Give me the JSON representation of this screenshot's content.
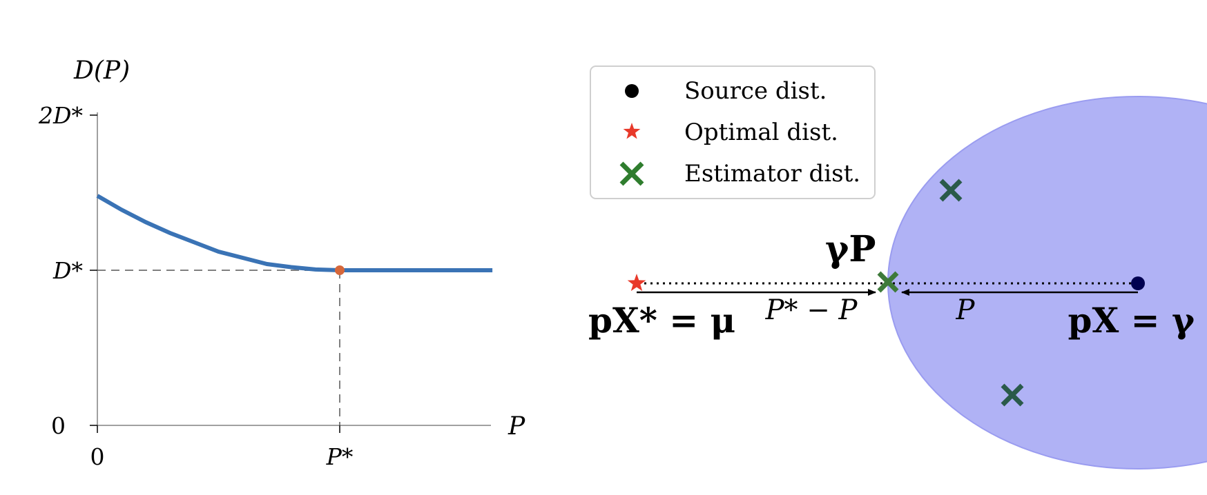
{
  "left_plot": {
    "y_axis_label": "D(P)",
    "x_axis_label": "P",
    "y_ticks": [
      "0",
      "D*",
      "2D*"
    ],
    "x_ticks": [
      "0",
      "P*"
    ],
    "curve_color": "#3a73b5",
    "marker_color": "#d6673a",
    "dash_color": "#7f7f7f"
  },
  "chart_data": {
    "type": "line",
    "title": "",
    "xlabel": "P",
    "ylabel": "D(P)",
    "xlim": [
      0,
      1.63
    ],
    "ylim": [
      0,
      2
    ],
    "x_tick_labels": [
      "0",
      "P*"
    ],
    "y_tick_labels": [
      "0",
      "D*",
      "2D*"
    ],
    "series": [
      {
        "x": [
          0,
          0.1,
          0.2,
          0.3,
          0.4,
          0.5,
          0.6,
          0.7,
          0.8,
          0.9,
          1.0,
          1.2,
          1.4,
          1.63
        ],
        "y": [
          1.48,
          1.39,
          1.31,
          1.24,
          1.18,
          1.12,
          1.08,
          1.04,
          1.02,
          1.005,
          1.0,
          1.0,
          1.0,
          1.0
        ]
      }
    ],
    "marked_point": {
      "x": 1.0,
      "y": 1.0,
      "label": "P*"
    },
    "grid": false
  },
  "legend": {
    "items": [
      {
        "label": "Source dist.",
        "marker": "dot",
        "color": "#000000"
      },
      {
        "label": "Optimal dist.",
        "marker": "star",
        "color": "#e8392a"
      },
      {
        "label": "Estimator dist.",
        "marker": "x",
        "color": "#2f7d2e"
      }
    ]
  },
  "right_diagram": {
    "region_color": "#b0b2f5",
    "region_edge_color": "#9a9cf0",
    "label_gamma_p": "γP",
    "label_px_star": "pX* = μ",
    "label_px": "pX = γ",
    "label_p_star_minus_p": "P* − P",
    "label_p": "P",
    "estimator_color": "#2a5a4a",
    "source_color": "#000050"
  }
}
